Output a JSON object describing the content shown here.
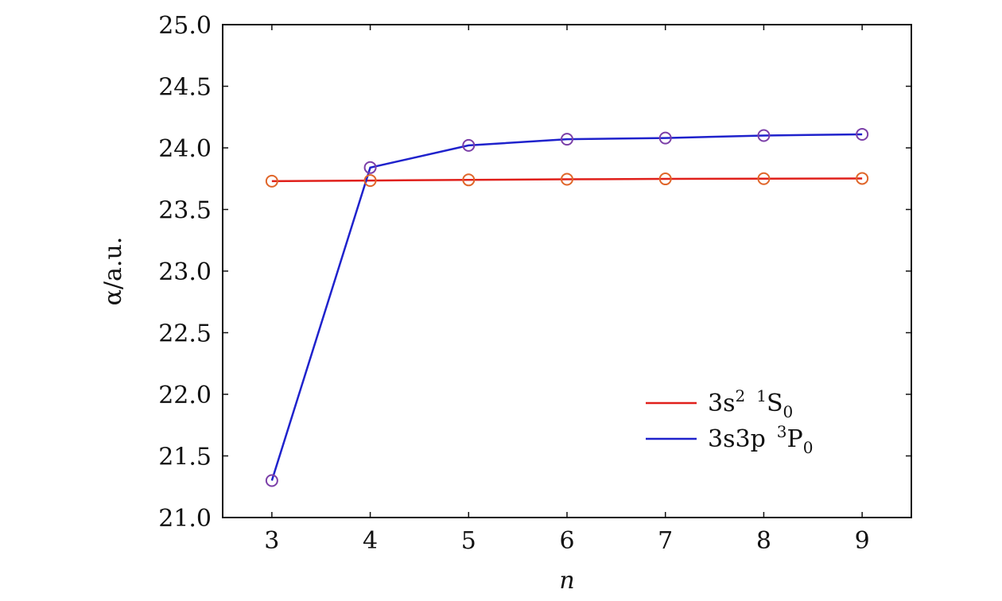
{
  "chart_data": {
    "type": "line",
    "x": [
      3,
      4,
      5,
      6,
      7,
      8,
      9
    ],
    "xlabel": "n",
    "ylabel": "α/a.u.",
    "xlim": [
      2.5,
      9.5
    ],
    "ylim": [
      21.0,
      25.0
    ],
    "xticks": [
      "3",
      "4",
      "5",
      "6",
      "7",
      "8",
      "9"
    ],
    "yticks": [
      "21.0",
      "21.5",
      "22.0",
      "22.5",
      "23.0",
      "23.5",
      "24.0",
      "24.5",
      "25.0"
    ],
    "grid": false,
    "legend_position": "lower-right",
    "series": [
      {
        "name": "3s2 1S0",
        "name_parts": {
          "a": "3s",
          "a_sup": "2",
          "b_sup": "1",
          "b": "S",
          "b_sub": "0"
        },
        "line_color": "#e0201b",
        "marker_color": "#e0662a",
        "values": [
          23.73,
          23.735,
          23.74,
          23.745,
          23.748,
          23.75,
          23.752
        ]
      },
      {
        "name": "3s3p 3P0",
        "name_parts": {
          "a": "3s3p",
          "b_sup": "3",
          "b": "P",
          "b_sub": "0"
        },
        "line_color": "#1f22cc",
        "marker_color": "#7b3fa8",
        "values": [
          21.3,
          23.84,
          24.02,
          24.07,
          24.08,
          24.1,
          24.11
        ]
      }
    ]
  }
}
